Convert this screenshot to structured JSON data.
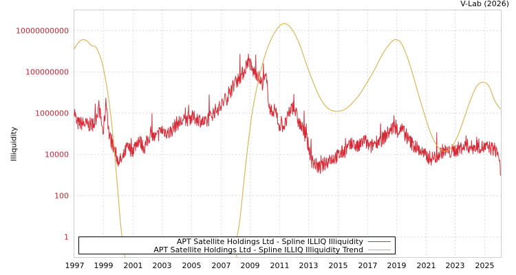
{
  "credit": "V-Lab (2026)",
  "chart_data": {
    "type": "line",
    "title": "",
    "xlabel": "",
    "ylabel": "Illiquidity",
    "yscale": "log",
    "ylim": [
      0.1,
      100000000000.0
    ],
    "xlim": [
      1997.0,
      2026.2
    ],
    "grid": true,
    "legend_position": "bottom-left inside",
    "x_ticks": [
      "1997",
      "1999",
      "2001",
      "2003",
      "2005",
      "2007",
      "2009",
      "2011",
      "2013",
      "2015",
      "2017",
      "2019",
      "2021",
      "2023",
      "2025"
    ],
    "y_ticks": [
      "1",
      "100",
      "10000",
      "1000000",
      "100000000",
      "10000000000"
    ],
    "y_tick_color": "#cc2233",
    "series": [
      {
        "name": "APT Satellite Holdings Ltd - Spline ILLIQ Illiquidity",
        "color": "#d62a36",
        "x": [
          1997.0,
          1997.2,
          1997.6,
          1998.0,
          1998.4,
          1998.7,
          1999.0,
          1999.2,
          1999.4,
          1999.7,
          2000.0,
          2000.3,
          2000.6,
          2001.0,
          2001.4,
          2001.8,
          2002.2,
          2002.6,
          2003.0,
          2003.5,
          2004.0,
          2004.5,
          2005.0,
          2005.5,
          2006.0,
          2006.5,
          2007.0,
          2007.5,
          2008.0,
          2008.3,
          2008.6,
          2008.9,
          2009.2,
          2009.5,
          2009.8,
          2010.1,
          2010.4,
          2010.7,
          2011.0,
          2011.4,
          2011.8,
          2012.0,
          2012.3,
          2012.6,
          2012.9,
          2013.2,
          2013.5,
          2013.8,
          2014.2,
          2014.6,
          2015.0,
          2015.5,
          2016.0,
          2016.4,
          2016.8,
          2017.2,
          2017.6,
          2018.0,
          2018.4,
          2018.8,
          2019.0,
          2019.4,
          2019.8,
          2020.2,
          2020.6,
          2021.0,
          2021.4,
          2021.8,
          2022.2,
          2022.6,
          2023.0,
          2023.4,
          2023.8,
          2024.2,
          2024.6,
          2025.0,
          2025.4,
          2025.8,
          2026.0,
          2026.1
        ],
        "values": [
          1500000.0,
          300000.0,
          300000.0,
          250000.0,
          300000.0,
          2000000.0,
          100000.0,
          4000000.0,
          80000.0,
          20000.0,
          5000.0,
          5000.0,
          20000.0,
          15000.0,
          50000.0,
          20000.0,
          80000.0,
          60000.0,
          150000.0,
          100000.0,
          300000.0,
          400000.0,
          600000.0,
          500000.0,
          300000.0,
          1000000.0,
          2000000.0,
          6000000.0,
          30000000.0,
          50000000.0,
          100000000.0,
          400000000.0,
          100000000.0,
          80000000.0,
          25000000.0,
          50000000.0,
          1000000.0,
          1500000.0,
          250000.0,
          250000.0,
          1500000.0,
          2000000.0,
          400000.0,
          150000.0,
          50000.0,
          5000.0,
          3000.0,
          2000.0,
          4000.0,
          6000.0,
          8000.0,
          15000.0,
          30000.0,
          20000.0,
          50000.0,
          20000.0,
          40000.0,
          50000.0,
          100000.0,
          200000.0,
          120000.0,
          150000.0,
          50000.0,
          25000.0,
          15000.0,
          8000.0,
          6000.0,
          8000.0,
          15000.0,
          12000.0,
          15000.0,
          20000.0,
          25000.0,
          20000.0,
          25000.0,
          20000.0,
          20000.0,
          15000.0,
          8000.0,
          900.0
        ]
      },
      {
        "name": "APT Satellite Holdings Ltd - Spline ILLIQ Illiquidity Trend",
        "color": "#d9b04a",
        "x": [
          1997.0,
          1997.3,
          1997.6,
          1997.9,
          1998.2,
          1998.5,
          1998.8,
          1999.0,
          1999.3,
          1999.6,
          1999.9,
          2000.2,
          2000.5,
          2000.8,
          2001.0,
          2007.8,
          2008.0,
          2008.3,
          2008.6,
          2008.9,
          2009.2,
          2009.6,
          2010.0,
          2010.4,
          2010.8,
          2011.2,
          2011.6,
          2012.0,
          2012.4,
          2012.8,
          2013.2,
          2013.6,
          2014.0,
          2014.4,
          2014.8,
          2015.1,
          2015.5,
          2016.0,
          2016.5,
          2017.0,
          2017.5,
          2018.0,
          2018.5,
          2018.9,
          2019.3,
          2019.7,
          2020.1,
          2020.5,
          2020.9,
          2021.3,
          2021.7,
          2022.1,
          2022.5,
          2022.9,
          2023.3,
          2023.7,
          2024.1,
          2024.5,
          2024.9,
          2025.3,
          2025.7,
          2026.1
        ],
        "values": [
          1200000000.0,
          2500000000.0,
          3500000000.0,
          3000000000.0,
          1800000000.0,
          1500000000.0,
          500000000.0,
          150000000.0,
          10000000.0,
          200000.0,
          1000.0,
          3,
          0.08,
          0.01,
          0.005,
          0.005,
          0.3,
          5,
          500,
          40000.0,
          1500000.0,
          40000000.0,
          500000000.0,
          3000000000.0,
          10000000000.0,
          20000000000.0,
          18000000000.0,
          8000000000.0,
          2000000000.0,
          300000000.0,
          50000000.0,
          10000000.0,
          3000000.0,
          1500000.0,
          1200000.0,
          1200000.0,
          1500000.0,
          3000000.0,
          8000000.0,
          30000000.0,
          120000000.0,
          600000000.0,
          2000000000.0,
          3500000000.0,
          2500000000.0,
          600000000.0,
          80000000.0,
          8000000.0,
          900000.0,
          120000.0,
          30000.0,
          15000.0,
          15000.0,
          30000.0,
          120000.0,
          800000.0,
          5000000.0,
          20000000.0,
          30000000.0,
          20000000.0,
          4000000.0,
          1500000.0
        ]
      }
    ]
  },
  "legend": {
    "items": [
      {
        "label": "APT Satellite Holdings Ltd - Spline ILLIQ Illiquidity",
        "color": "#d62a36"
      },
      {
        "label": "APT Satellite Holdings Ltd - Spline ILLIQ Illiquidity Trend",
        "color": "#d9b04a"
      }
    ]
  }
}
